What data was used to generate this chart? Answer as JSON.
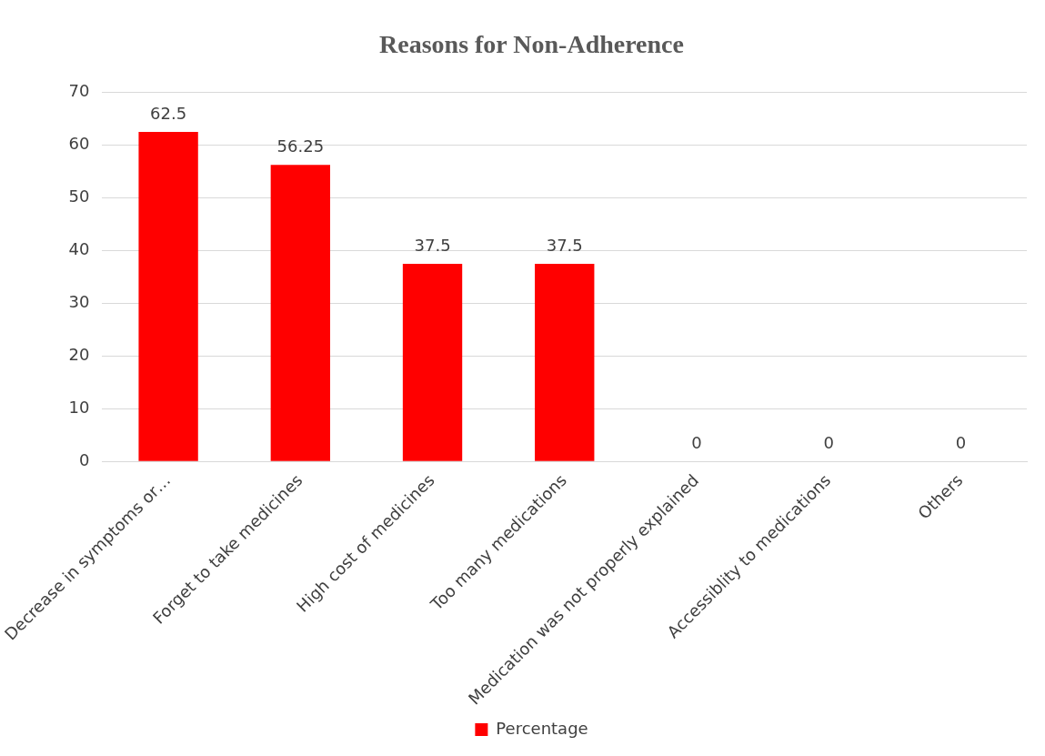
{
  "chart_data": {
    "type": "bar",
    "title": "Reasons for Non-Adherence",
    "categories": [
      "Decrease in symptoms or…",
      "Forget to take medicines",
      "High cost of medicines",
      "Too many medications",
      "Medication was not properly explained",
      "Accessiblity to medications",
      "Others"
    ],
    "series": [
      {
        "name": "Percentage",
        "color": "#ff0000",
        "values": [
          62.5,
          56.25,
          37.5,
          37.5,
          0,
          0,
          0
        ]
      }
    ],
    "ylim": [
      0,
      70
    ],
    "yticks": [
      0,
      10,
      20,
      30,
      40,
      50,
      60,
      70
    ],
    "grid": "y",
    "legend": "bottom",
    "data_labels": true
  }
}
